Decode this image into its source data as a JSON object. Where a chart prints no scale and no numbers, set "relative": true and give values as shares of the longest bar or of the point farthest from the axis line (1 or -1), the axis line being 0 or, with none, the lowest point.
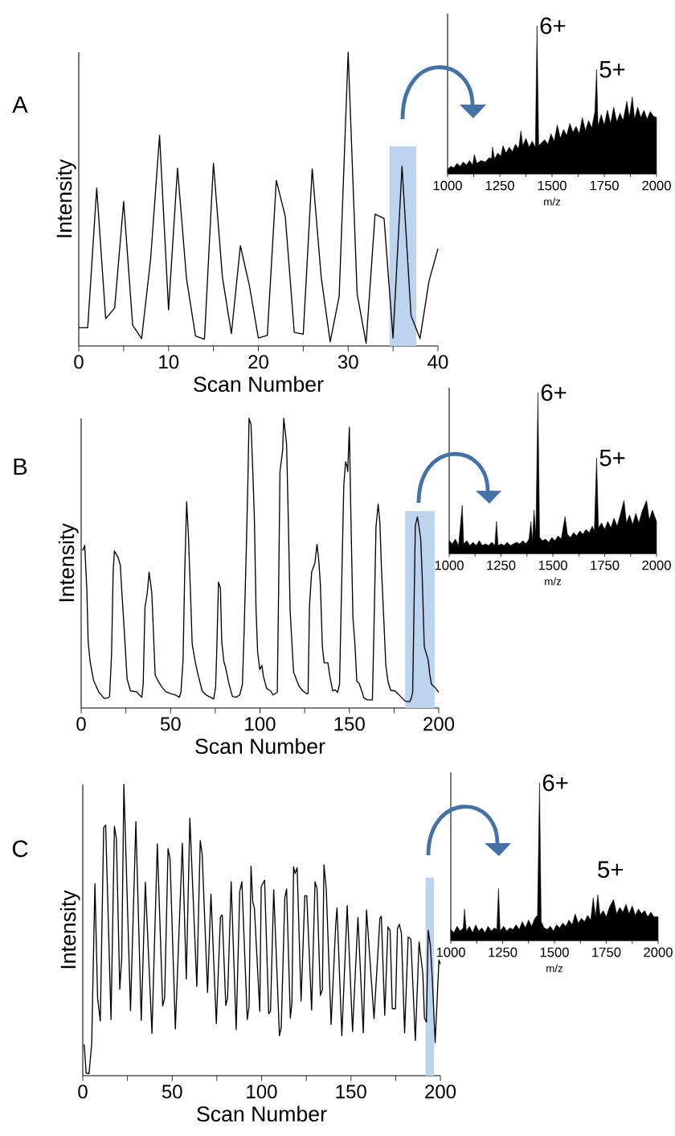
{
  "chart_data": [
    {
      "type": "line",
      "title": "A",
      "xlabel": "Scan Number",
      "ylabel": "Intensity",
      "relative": true,
      "color": "#000000",
      "xlim": [
        0,
        40
      ],
      "xticks": [
        0,
        {
          "value": 5,
          "label": null
        },
        10,
        {
          "value": 15,
          "label": null
        },
        20,
        {
          "value": 25,
          "label": null
        },
        30,
        {
          "value": 35,
          "label": null
        },
        40
      ],
      "bands": [
        {
          "axis": "x",
          "from": 34.6,
          "to": 37.6,
          "color": "#bdd4ee"
        }
      ],
      "x": [
        0,
        1,
        2,
        3,
        4,
        5,
        6,
        7,
        8,
        9,
        10,
        11,
        12,
        13,
        14,
        15,
        16,
        17,
        18,
        19,
        20,
        21,
        22,
        23,
        24,
        25,
        26,
        27,
        28,
        29,
        30,
        31,
        32,
        33,
        34,
        35,
        36,
        37,
        38,
        39,
        40
      ],
      "values": [
        0.062,
        0.062,
        0.538,
        0.093,
        0.129,
        0.492,
        0.071,
        0.025,
        0.294,
        0.717,
        0.123,
        0.605,
        0.229,
        0.034,
        0.023,
        0.622,
        0.234,
        0.042,
        0.341,
        0.206,
        0.027,
        0.036,
        0.564,
        0.441,
        0.046,
        0.04,
        0.603,
        0.234,
        0.014,
        0.169,
        1.0,
        0.178,
        0.009,
        0.449,
        0.434,
        0.027,
        0.612,
        0.104,
        0.025,
        0.22,
        0.331
      ]
    },
    {
      "type": "area",
      "xlabel": "m/z",
      "relative": true,
      "color": "#000000",
      "xlim": [
        1000,
        2000
      ],
      "xticks": [
        1000,
        {
          "value": 1125,
          "label": null
        },
        1250,
        {
          "value": 1375,
          "label": null
        },
        1500,
        {
          "value": 1625,
          "label": null
        },
        1750,
        {
          "value": 1875,
          "label": null
        },
        2000
      ],
      "annotations": [
        {
          "text": "6+",
          "x": 1428,
          "y": 1.0
        },
        {
          "text": "5+",
          "x": 1713,
          "y": 0.705
        }
      ],
      "x": [
        1000,
        1015,
        1030,
        1045,
        1060,
        1075,
        1090,
        1105,
        1120,
        1128,
        1140,
        1160,
        1180,
        1200,
        1210,
        1215,
        1225,
        1240,
        1255,
        1265,
        1280,
        1295,
        1310,
        1325,
        1340,
        1351,
        1360,
        1375,
        1390,
        1405,
        1420,
        1428,
        1436,
        1450,
        1465,
        1480,
        1495,
        1510,
        1525,
        1540,
        1555,
        1570,
        1585,
        1600,
        1615,
        1630,
        1645,
        1660,
        1675,
        1690,
        1705,
        1713,
        1720,
        1735,
        1750,
        1765,
        1780,
        1795,
        1810,
        1825,
        1840,
        1858,
        1870,
        1884,
        1895,
        1910,
        1925,
        1940,
        1955,
        1970,
        1985,
        2000
      ],
      "values": [
        0.03,
        0.05,
        0.04,
        0.07,
        0.05,
        0.08,
        0.06,
        0.09,
        0.06,
        0.13,
        0.07,
        0.09,
        0.08,
        0.11,
        0.1,
        0.18,
        0.1,
        0.14,
        0.12,
        0.19,
        0.14,
        0.18,
        0.15,
        0.2,
        0.17,
        0.29,
        0.19,
        0.24,
        0.18,
        0.22,
        0.18,
        1.0,
        0.19,
        0.21,
        0.23,
        0.2,
        0.27,
        0.22,
        0.33,
        0.24,
        0.3,
        0.26,
        0.34,
        0.28,
        0.32,
        0.27,
        0.38,
        0.29,
        0.36,
        0.31,
        0.42,
        0.705,
        0.32,
        0.4,
        0.33,
        0.43,
        0.34,
        0.45,
        0.35,
        0.41,
        0.36,
        0.49,
        0.38,
        0.52,
        0.37,
        0.45,
        0.38,
        0.43,
        0.37,
        0.42,
        0.39,
        0.38
      ]
    },
    {
      "type": "line",
      "title": "B",
      "xlabel": "Scan Number",
      "ylabel": "Intensity",
      "relative": true,
      "color": "#000000",
      "xlim": [
        0,
        200
      ],
      "xticks": [
        0,
        {
          "value": 25,
          "label": null
        },
        50,
        {
          "value": 75,
          "label": null
        },
        100,
        {
          "value": 125,
          "label": null
        },
        150,
        {
          "value": 175,
          "label": null
        },
        200
      ],
      "bands": [
        {
          "axis": "x",
          "from": 181.2,
          "to": 197.7,
          "color": "#bdd4ee"
        }
      ],
      "x": [
        0.6,
        1.1,
        2.0,
        3.2,
        3.9,
        5.0,
        6.9,
        9.9,
        12.9,
        15.2,
        15.9,
        17.0,
        17.9,
        18.6,
        20.7,
        21.9,
        22.7,
        24.2,
        25.7,
        27.6,
        30.9,
        33.9,
        34.7,
        35.7,
        36.9,
        38.0,
        39.5,
        40.2,
        41.4,
        43.2,
        45.2,
        47.4,
        50.4,
        52.7,
        54.9,
        55.8,
        57.0,
        57.9,
        59.0,
        60.0,
        61.2,
        62.1,
        63.9,
        65.4,
        67.7,
        69.9,
        72.9,
        74.1,
        75.2,
        75.9,
        76.8,
        77.9,
        78.6,
        79.8,
        80.7,
        82.7,
        84.6,
        86.7,
        88.7,
        90.2,
        91.2,
        92.4,
        93.3,
        93.9,
        95.0,
        96.0,
        96.9,
        97.8,
        98.7,
        99.9,
        101.1,
        101.9,
        103.7,
        105.9,
        107.4,
        109.7,
        110.4,
        111.2,
        112.7,
        113.3,
        114.2,
        114.9,
        115.8,
        116.9,
        118.8,
        119.7,
        121.7,
        123.9,
        126.2,
        126.9,
        127.7,
        128.9,
        130.7,
        131.9,
        132.9,
        133.8,
        134.9,
        135.9,
        138.0,
        139.2,
        140.7,
        141.9,
        143.4,
        144.5,
        145.5,
        146.9,
        147.9,
        148.7,
        149.1,
        150.0,
        150.9,
        152.0,
        153.2,
        154.2,
        155.4,
        157.2,
        158.1,
        159.9,
        161.4,
        162.9,
        164.0,
        164.9,
        166.1,
        167.1,
        167.9,
        169.2,
        170.4,
        171.6,
        173.1,
        175.4,
        177.2,
        179.4,
        181.2,
        183.6,
        184.5,
        185.4,
        186.2,
        186.9,
        188.1,
        189.9,
        190.7,
        191.9,
        194.1,
        194.9,
        195.9,
        197.9,
        200
      ],
      "values": [
        0.545,
        0.546,
        0.562,
        0.407,
        0.23,
        0.161,
        0.096,
        0.054,
        0.033,
        0.035,
        0.04,
        0.184,
        0.472,
        0.542,
        0.519,
        0.493,
        0.407,
        0.258,
        0.1,
        0.059,
        0.056,
        0.037,
        0.082,
        0.349,
        0.393,
        0.469,
        0.398,
        0.296,
        0.114,
        0.091,
        0.072,
        0.056,
        0.049,
        0.045,
        0.037,
        0.054,
        0.165,
        0.463,
        0.711,
        0.593,
        0.388,
        0.221,
        0.156,
        0.114,
        0.059,
        0.045,
        0.035,
        0.031,
        0.072,
        0.212,
        0.435,
        0.414,
        0.23,
        0.161,
        0.142,
        0.082,
        0.04,
        0.037,
        0.045,
        0.082,
        0.277,
        0.556,
        0.797,
        1.0,
        0.979,
        0.816,
        0.649,
        0.342,
        0.193,
        0.133,
        0.147,
        0.11,
        0.068,
        0.059,
        0.045,
        0.054,
        0.388,
        0.816,
        0.89,
        1.0,
        0.951,
        0.909,
        0.667,
        0.333,
        0.124,
        0.11,
        0.077,
        0.059,
        0.049,
        0.049,
        0.351,
        0.469,
        0.5,
        0.565,
        0.509,
        0.426,
        0.212,
        0.156,
        0.156,
        0.105,
        0.059,
        0.063,
        0.054,
        0.082,
        0.37,
        0.77,
        0.85,
        0.835,
        0.816,
        0.969,
        0.649,
        0.314,
        0.212,
        0.091,
        0.086,
        0.054,
        0.035,
        0.028,
        0.028,
        0.028,
        0.342,
        0.625,
        0.704,
        0.639,
        0.491,
        0.314,
        0.147,
        0.091,
        0.061,
        0.059,
        0.049,
        0.035,
        0.024,
        0.021,
        0.031,
        0.054,
        0.351,
        0.63,
        0.66,
        0.584,
        0.463,
        0.212,
        0.165,
        0.119,
        0.082,
        0.071,
        0.054
      ]
    },
    {
      "type": "area",
      "xlabel": "m/z",
      "relative": true,
      "color": "#000000",
      "xlim": [
        1000,
        2000
      ],
      "xticks": [
        1000,
        {
          "value": 1125,
          "label": null
        },
        1250,
        {
          "value": 1375,
          "label": null
        },
        1500,
        {
          "value": 1625,
          "label": null
        },
        1750,
        {
          "value": 1875,
          "label": null
        },
        2000
      ],
      "annotations": [
        {
          "text": "6+",
          "x": 1428,
          "y": 1.0
        },
        {
          "text": "5+",
          "x": 1711,
          "y": 0.594
        }
      ],
      "x": [
        1000,
        1015,
        1030,
        1045,
        1063,
        1070,
        1085,
        1100,
        1115,
        1130,
        1145,
        1160,
        1175,
        1190,
        1205,
        1220,
        1228,
        1236,
        1250,
        1265,
        1280,
        1295,
        1310,
        1325,
        1340,
        1355,
        1370,
        1385,
        1394,
        1402,
        1409,
        1418,
        1428,
        1436,
        1450,
        1465,
        1480,
        1495,
        1510,
        1525,
        1540,
        1559,
        1570,
        1585,
        1600,
        1615,
        1630,
        1645,
        1660,
        1675,
        1690,
        1700,
        1711,
        1720,
        1735,
        1750,
        1765,
        1780,
        1795,
        1810,
        1825,
        1843,
        1855,
        1870,
        1885,
        1900,
        1915,
        1930,
        1952,
        1965,
        1980,
        2000
      ],
      "values": [
        0.08,
        0.06,
        0.09,
        0.05,
        0.3,
        0.06,
        0.08,
        0.05,
        0.07,
        0.05,
        0.08,
        0.05,
        0.06,
        0.05,
        0.07,
        0.05,
        0.2,
        0.05,
        0.06,
        0.05,
        0.07,
        0.05,
        0.06,
        0.07,
        0.06,
        0.08,
        0.06,
        0.09,
        0.2,
        0.08,
        0.27,
        0.12,
        1.0,
        0.1,
        0.08,
        0.09,
        0.07,
        0.1,
        0.08,
        0.11,
        0.09,
        0.23,
        0.12,
        0.1,
        0.13,
        0.11,
        0.14,
        0.12,
        0.15,
        0.13,
        0.17,
        0.14,
        0.594,
        0.16,
        0.19,
        0.15,
        0.2,
        0.16,
        0.22,
        0.17,
        0.24,
        0.33,
        0.19,
        0.24,
        0.18,
        0.25,
        0.19,
        0.26,
        0.33,
        0.21,
        0.27,
        0.2
      ]
    },
    {
      "type": "line",
      "title": "C",
      "xlabel": "Scan Number",
      "ylabel": "Intensity",
      "relative": true,
      "color": "#000000",
      "xlim": [
        0,
        200
      ],
      "xticks": [
        0,
        {
          "value": 25,
          "label": null
        },
        50,
        {
          "value": 75,
          "label": null
        },
        100,
        {
          "value": 125,
          "label": null
        },
        150,
        {
          "value": 175,
          "label": null
        },
        200
      ],
      "bands": [
        {
          "axis": "x",
          "from": 191.7,
          "to": 196.5,
          "color": "#bdd4ee"
        }
      ],
      "x": [
        0.8,
        1.9,
        3.5,
        5.0,
        6.8,
        8.3,
        9.8,
        11.7,
        12.8,
        15.8,
        17.7,
        18.8,
        20.7,
        21.8,
        23.0,
        26.7,
        29.7,
        32.7,
        35.0,
        38.7,
        41.7,
        44.7,
        45.8,
        47.7,
        48.8,
        51.8,
        55.7,
        57.9,
        59.9,
        63.8,
        65.7,
        66.8,
        69.8,
        71.7,
        74.7,
        77.0,
        78.0,
        80.0,
        81.0,
        83.0,
        85.8,
        87.8,
        89.0,
        92.0,
        93.0,
        94.1,
        95.1,
        96.0,
        99.0,
        99.8,
        101.7,
        104.0,
        105.0,
        106.8,
        110.0,
        111.0,
        113.0,
        114.0,
        116.1,
        117.0,
        117.9,
        118.8,
        119.9,
        122.1,
        124.2,
        125.3,
        128.0,
        129.9,
        131.0,
        132.9,
        134.0,
        134.9,
        136.2,
        138.9,
        141.5,
        142.2,
        144.9,
        147.9,
        150.9,
        153.9,
        156.9,
        158.7,
        162.9,
        166.2,
        167.0,
        168.9,
        170.7,
        171.9,
        173.1,
        174.9,
        176.0,
        177.0,
        178.2,
        180.0,
        182.0,
        183.5,
        186.0,
        188.1,
        190.2,
        191.1,
        192.2,
        193.2,
        194.4,
        195.5,
        197.1,
        199.2,
        200
      ],
      "values": [
        0.107,
        0.009,
        0.007,
        0.109,
        0.659,
        0.267,
        0.188,
        0.852,
        0.861,
        0.193,
        0.856,
        0.814,
        0.297,
        0.406,
        1.0,
        0.223,
        0.872,
        0.19,
        0.664,
        0.145,
        0.796,
        0.239,
        0.267,
        0.779,
        0.745,
        0.16,
        0.798,
        0.332,
        0.884,
        0.306,
        0.807,
        0.759,
        0.286,
        0.624,
        0.179,
        0.545,
        0.552,
        0.241,
        0.267,
        0.666,
        0.158,
        0.632,
        0.666,
        0.193,
        0.237,
        0.719,
        0.596,
        0.575,
        0.221,
        0.649,
        0.671,
        0.212,
        0.221,
        0.638,
        0.137,
        0.165,
        0.61,
        0.641,
        0.198,
        0.249,
        0.717,
        0.694,
        0.714,
        0.256,
        0.618,
        0.617,
        0.225,
        0.666,
        0.643,
        0.276,
        0.295,
        0.724,
        0.638,
        0.176,
        0.522,
        0.576,
        0.137,
        0.584,
        0.151,
        0.543,
        0.147,
        0.569,
        0.195,
        0.541,
        0.547,
        0.207,
        0.511,
        0.499,
        0.23,
        0.23,
        0.504,
        0.52,
        0.49,
        0.147,
        0.476,
        0.469,
        0.121,
        0.459,
        0.351,
        0.198,
        0.184,
        0.499,
        0.448,
        0.332,
        0.114,
        0.397,
        0.383
      ]
    },
    {
      "type": "area",
      "xlabel": "m/z",
      "relative": true,
      "color": "#000000",
      "xlim": [
        1000,
        2000
      ],
      "xticks": [
        1000,
        {
          "value": 1125,
          "label": null
        },
        1250,
        {
          "value": 1375,
          "label": null
        },
        1500,
        {
          "value": 1625,
          "label": null
        },
        1750,
        {
          "value": 1875,
          "label": null
        },
        2000
      ],
      "annotations": [
        {
          "text": "6+",
          "x": 1428,
          "y": 1.0
        },
        "5+"
      ],
      "x": [
        1000,
        1015,
        1030,
        1045,
        1060,
        1066,
        1075,
        1090,
        1105,
        1120,
        1135,
        1150,
        1165,
        1180,
        1195,
        1210,
        1222,
        1230,
        1238,
        1255,
        1270,
        1285,
        1300,
        1315,
        1330,
        1345,
        1360,
        1375,
        1390,
        1405,
        1418,
        1428,
        1436,
        1450,
        1465,
        1480,
        1495,
        1510,
        1525,
        1540,
        1555,
        1570,
        1585,
        1600,
        1615,
        1630,
        1645,
        1660,
        1675,
        1687,
        1698,
        1709,
        1720,
        1735,
        1750,
        1765,
        1785,
        1800,
        1815,
        1830,
        1845,
        1860,
        1875,
        1890,
        1905,
        1920,
        1935,
        1950,
        1965,
        1980,
        2000
      ],
      "values": [
        0.07,
        0.05,
        0.09,
        0.06,
        0.08,
        0.2,
        0.06,
        0.09,
        0.05,
        0.1,
        0.06,
        0.08,
        0.05,
        0.09,
        0.06,
        0.08,
        0.07,
        0.33,
        0.06,
        0.09,
        0.06,
        0.08,
        0.07,
        0.1,
        0.07,
        0.12,
        0.08,
        0.13,
        0.09,
        0.14,
        0.16,
        1.0,
        0.12,
        0.08,
        0.07,
        0.09,
        0.06,
        0.1,
        0.08,
        0.11,
        0.09,
        0.13,
        0.1,
        0.17,
        0.11,
        0.14,
        0.12,
        0.16,
        0.13,
        0.27,
        0.15,
        0.29,
        0.16,
        0.19,
        0.15,
        0.21,
        0.26,
        0.17,
        0.21,
        0.18,
        0.23,
        0.17,
        0.22,
        0.16,
        0.2,
        0.17,
        0.19,
        0.15,
        0.18,
        0.15,
        0.15
      ]
    }
  ]
}
